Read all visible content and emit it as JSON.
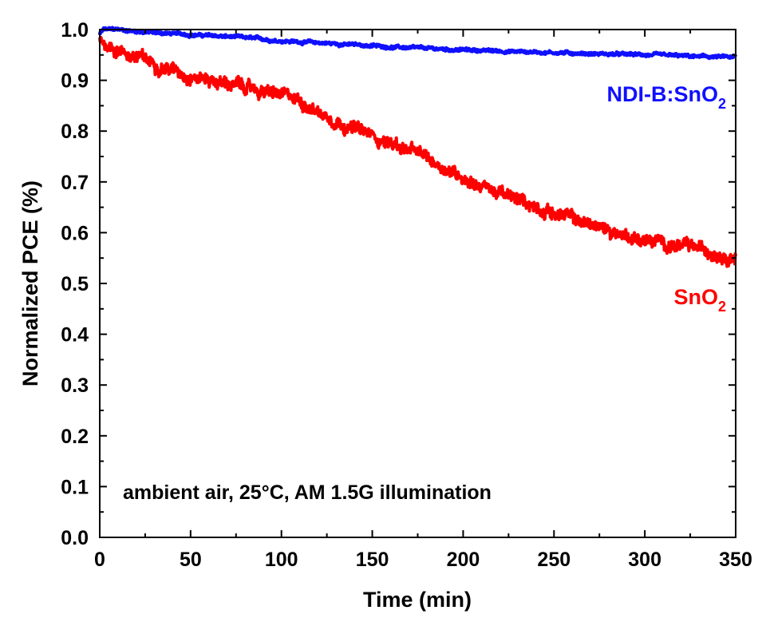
{
  "chart_data": {
    "type": "line",
    "title": "",
    "xlabel": "Time (min)",
    "ylabel": "Normalized PCE (%)",
    "xlim": [
      0,
      350
    ],
    "ylim": [
      0.0,
      1.0
    ],
    "xticks": [
      0,
      50,
      100,
      150,
      200,
      250,
      300,
      350
    ],
    "xtick_labels": [
      "0",
      "50",
      "100",
      "150",
      "200",
      "250",
      "300",
      "350"
    ],
    "yticks": [
      0.0,
      0.1,
      0.2,
      0.3,
      0.4,
      0.5,
      0.6,
      0.7,
      0.8,
      0.9,
      1.0
    ],
    "ytick_labels": [
      "0.0",
      "0.1",
      "0.2",
      "0.3",
      "0.4",
      "0.5",
      "0.6",
      "0.7",
      "0.8",
      "0.9",
      "1.0"
    ],
    "grid": false,
    "annotation": {
      "text": "ambient air, 25°C, AM 1.5G illumination"
    },
    "series": [
      {
        "name": "NDI-B:SnO2",
        "label_main": "NDI-B:SnO",
        "label_sub": "2",
        "color": "#1010ff",
        "noise": 0.003,
        "x": [
          0,
          2,
          10,
          25,
          50,
          75,
          100,
          125,
          150,
          175,
          200,
          225,
          250,
          275,
          300,
          325,
          350
        ],
        "y": [
          0.99,
          1.0,
          1.0,
          0.995,
          0.99,
          0.985,
          0.978,
          0.973,
          0.968,
          0.963,
          0.96,
          0.957,
          0.955,
          0.952,
          0.95,
          0.947,
          0.945
        ]
      },
      {
        "name": "SnO2",
        "label_main": "SnO",
        "label_sub": "2",
        "color": "#ff0000",
        "noise": 0.012,
        "x": [
          0,
          10,
          25,
          50,
          75,
          100,
          110,
          125,
          150,
          165,
          175,
          200,
          225,
          250,
          275,
          300,
          325,
          350
        ],
        "y": [
          0.98,
          0.96,
          0.94,
          0.91,
          0.89,
          0.87,
          0.86,
          0.83,
          0.79,
          0.77,
          0.755,
          0.71,
          0.67,
          0.64,
          0.61,
          0.585,
          0.57,
          0.555
        ]
      }
    ]
  }
}
